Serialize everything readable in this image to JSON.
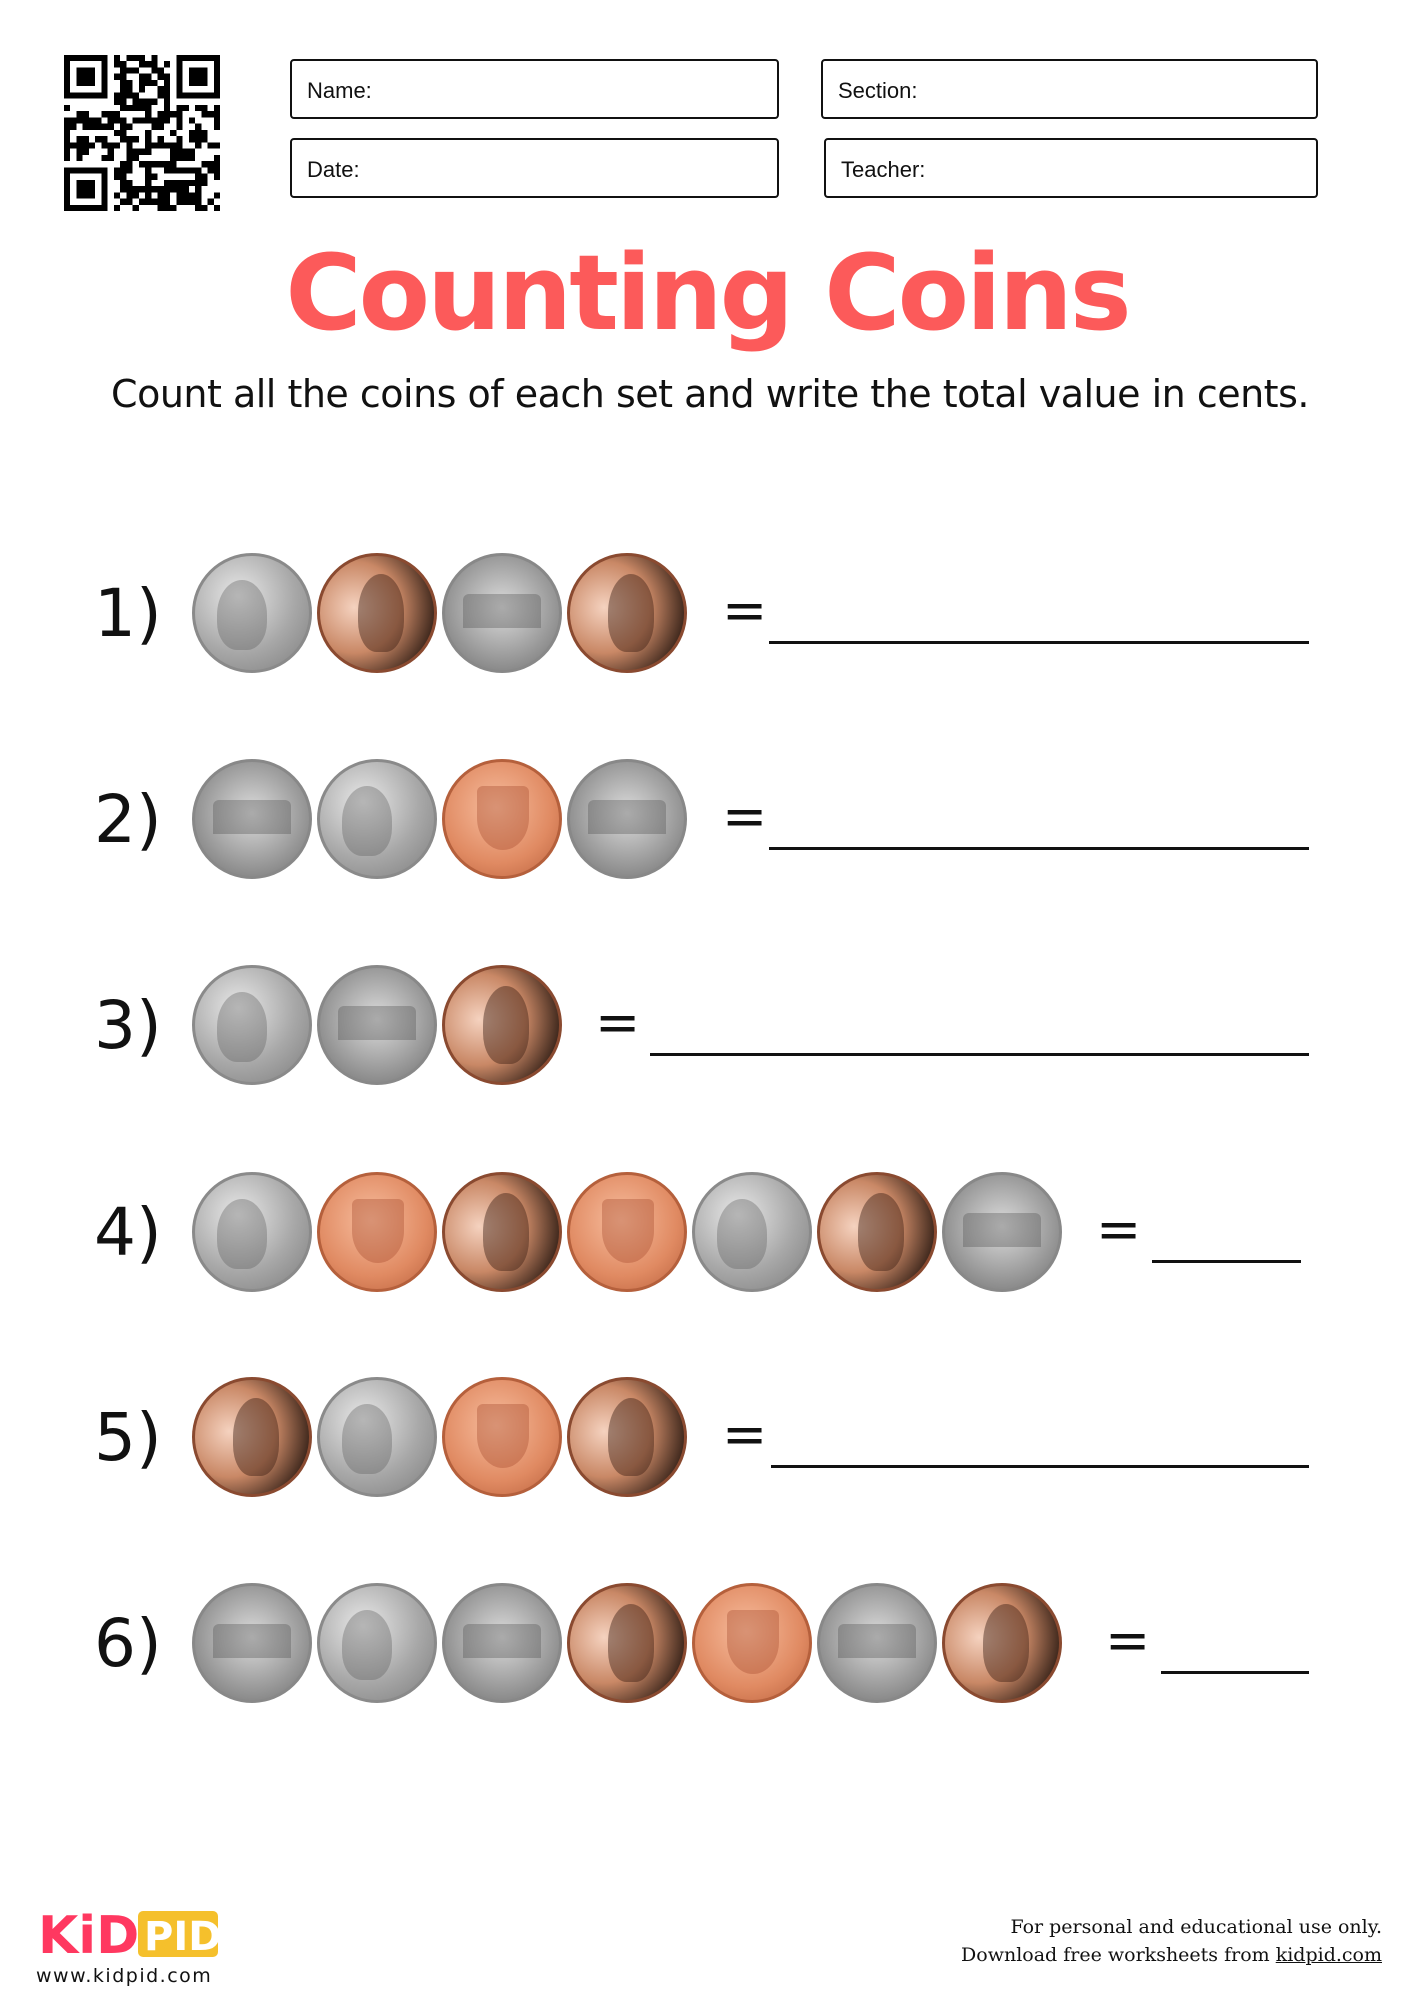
{
  "header": {
    "fields": {
      "name": "Name:",
      "section": "Section:",
      "date": "Date:",
      "teacher": "Teacher:"
    }
  },
  "title": "Counting Coins",
  "instructions": "Count all the coins of each set and write the total value in cents.",
  "problems": [
    {
      "label": "1)",
      "equals": "=",
      "coins": [
        "nickel-front",
        "penny-front",
        "nickel-back",
        "penny-front"
      ]
    },
    {
      "label": "2)",
      "equals": "=",
      "coins": [
        "nickel-back",
        "nickel-front",
        "penny-back",
        "nickel-back"
      ]
    },
    {
      "label": "3)",
      "equals": "=",
      "coins": [
        "nickel-front",
        "nickel-back",
        "penny-front"
      ]
    },
    {
      "label": "4)",
      "equals": "=",
      "coins": [
        "nickel-front",
        "penny-back",
        "penny-front",
        "penny-back",
        "nickel-front",
        "penny-front",
        "nickel-back"
      ]
    },
    {
      "label": "5)",
      "equals": "=",
      "coins": [
        "penny-front",
        "nickel-front",
        "penny-back",
        "penny-front"
      ]
    },
    {
      "label": "6)",
      "equals": "=",
      "coins": [
        "nickel-back",
        "nickel-front",
        "nickel-back",
        "penny-front",
        "penny-back",
        "nickel-back",
        "penny-front"
      ]
    }
  ],
  "footer": {
    "logo": {
      "part1": "KiD",
      "part2": "PID",
      "color1": "#ff3860",
      "color2": "#f5c02c"
    },
    "website": "www.kidpid.com",
    "note_line1": "For personal and educational use only.",
    "note_line2_prefix": "Download free worksheets from ",
    "note_link": "kidpid.com"
  },
  "colors": {
    "title": "#fc5a5a"
  }
}
